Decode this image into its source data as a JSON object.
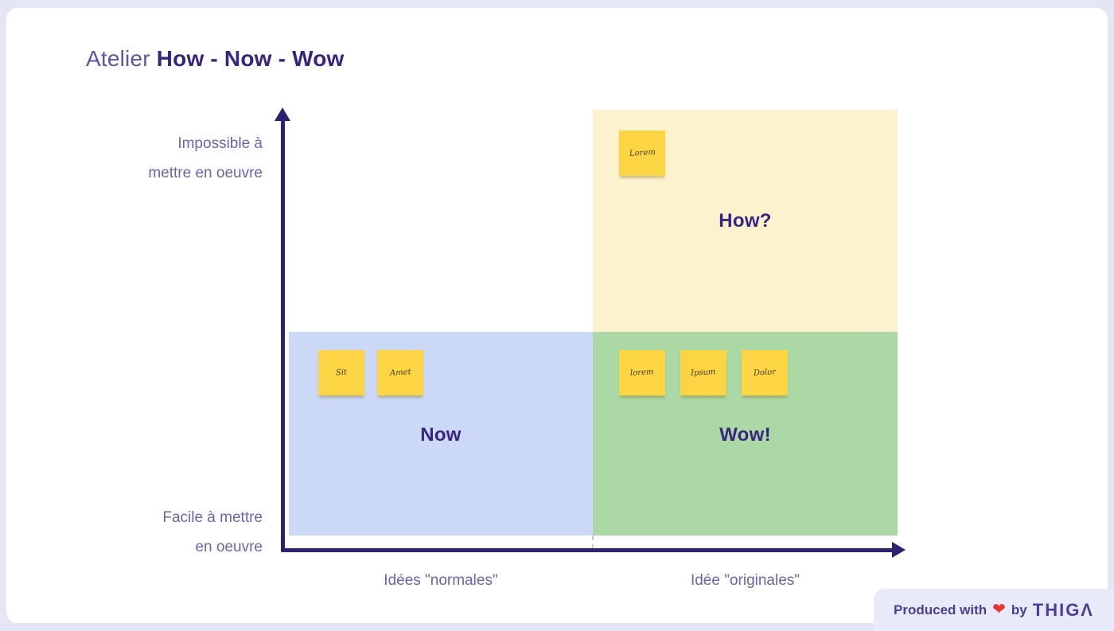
{
  "title": {
    "regular": "Atelier ",
    "bold": "How - Now - Wow"
  },
  "axes": {
    "y_top_line1": "Impossible à",
    "y_top_line2": "mettre en oeuvre",
    "y_bottom_line1": "Facile à mettre",
    "y_bottom_line2": "en oeuvre",
    "x_left": "Idées \"normales\"",
    "x_right": "Idée \"originales\""
  },
  "quadrants": {
    "how": {
      "label": "How?",
      "color": "#fcf3ce"
    },
    "now": {
      "label": "Now",
      "color": "#cbd8f6"
    },
    "wow": {
      "label": "Wow!",
      "color": "#abd8a4"
    }
  },
  "notes": [
    {
      "label": "Lorem",
      "quadrant": "how"
    },
    {
      "label": "Sit",
      "quadrant": "now"
    },
    {
      "label": "Amet",
      "quadrant": "now"
    },
    {
      "label": "lorem",
      "quadrant": "wow"
    },
    {
      "label": "Ipsum",
      "quadrant": "wow"
    },
    {
      "label": "Dolor",
      "quadrant": "wow"
    }
  ],
  "footer": {
    "produced_with": "Produced with",
    "heart_icon": "❤",
    "by": "by",
    "brand": "THIGΛ"
  },
  "colors": {
    "background": "#e4e5f5",
    "card": "#ffffff",
    "axis": "#31206f",
    "title_bold": "#372382",
    "title_regular": "#5d54a4",
    "axis_label": "#6c63ad",
    "sticky_note": "#fbd544",
    "heart_red": "#e8322e",
    "footer_purple": "#4a3e99"
  }
}
